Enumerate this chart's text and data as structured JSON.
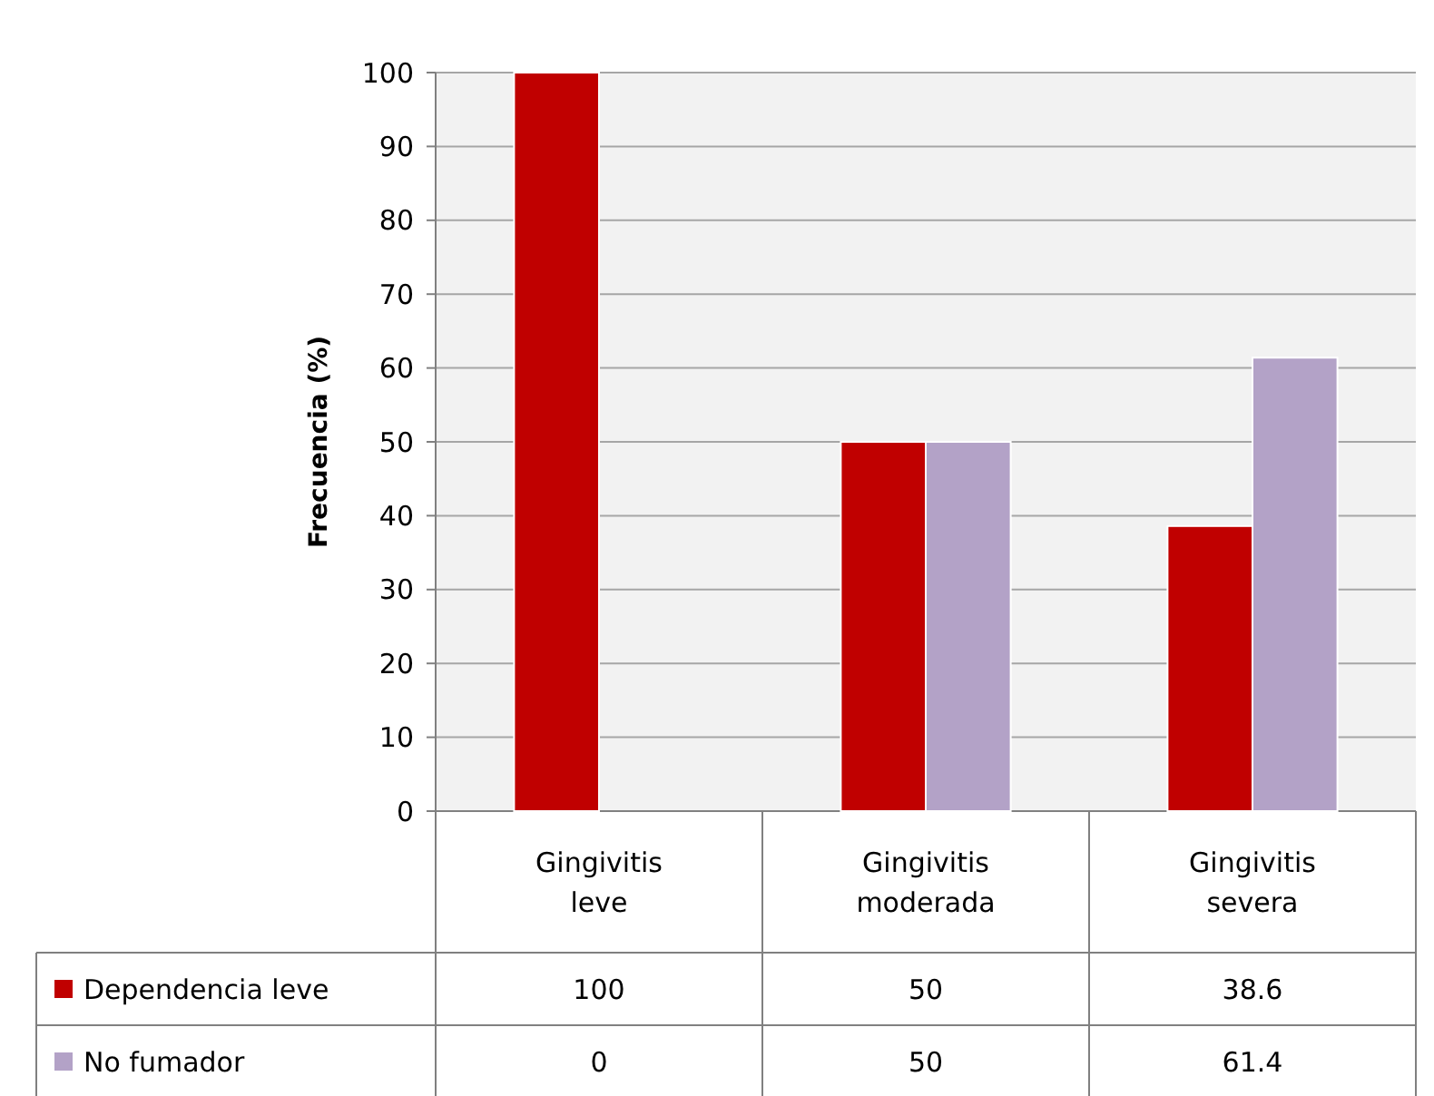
{
  "chart_data": {
    "type": "bar",
    "ylabel": "Frecuencia (%)",
    "categories": [
      "Gingivitis leve",
      "Gingivitis moderada",
      "Gingivitis severa"
    ],
    "series": [
      {
        "name": "Dependencia leve",
        "color": "#c00000",
        "values": [
          100,
          50,
          38.6
        ]
      },
      {
        "name": "No fumador",
        "color": "#b3a2c7",
        "values": [
          0,
          50,
          61.4
        ]
      }
    ],
    "ylim": [
      0,
      100
    ],
    "yticks": [
      0,
      10,
      20,
      30,
      40,
      50,
      60,
      70,
      80,
      90,
      100
    ],
    "grid": "y",
    "legend": "bottom",
    "data_labels": true
  }
}
